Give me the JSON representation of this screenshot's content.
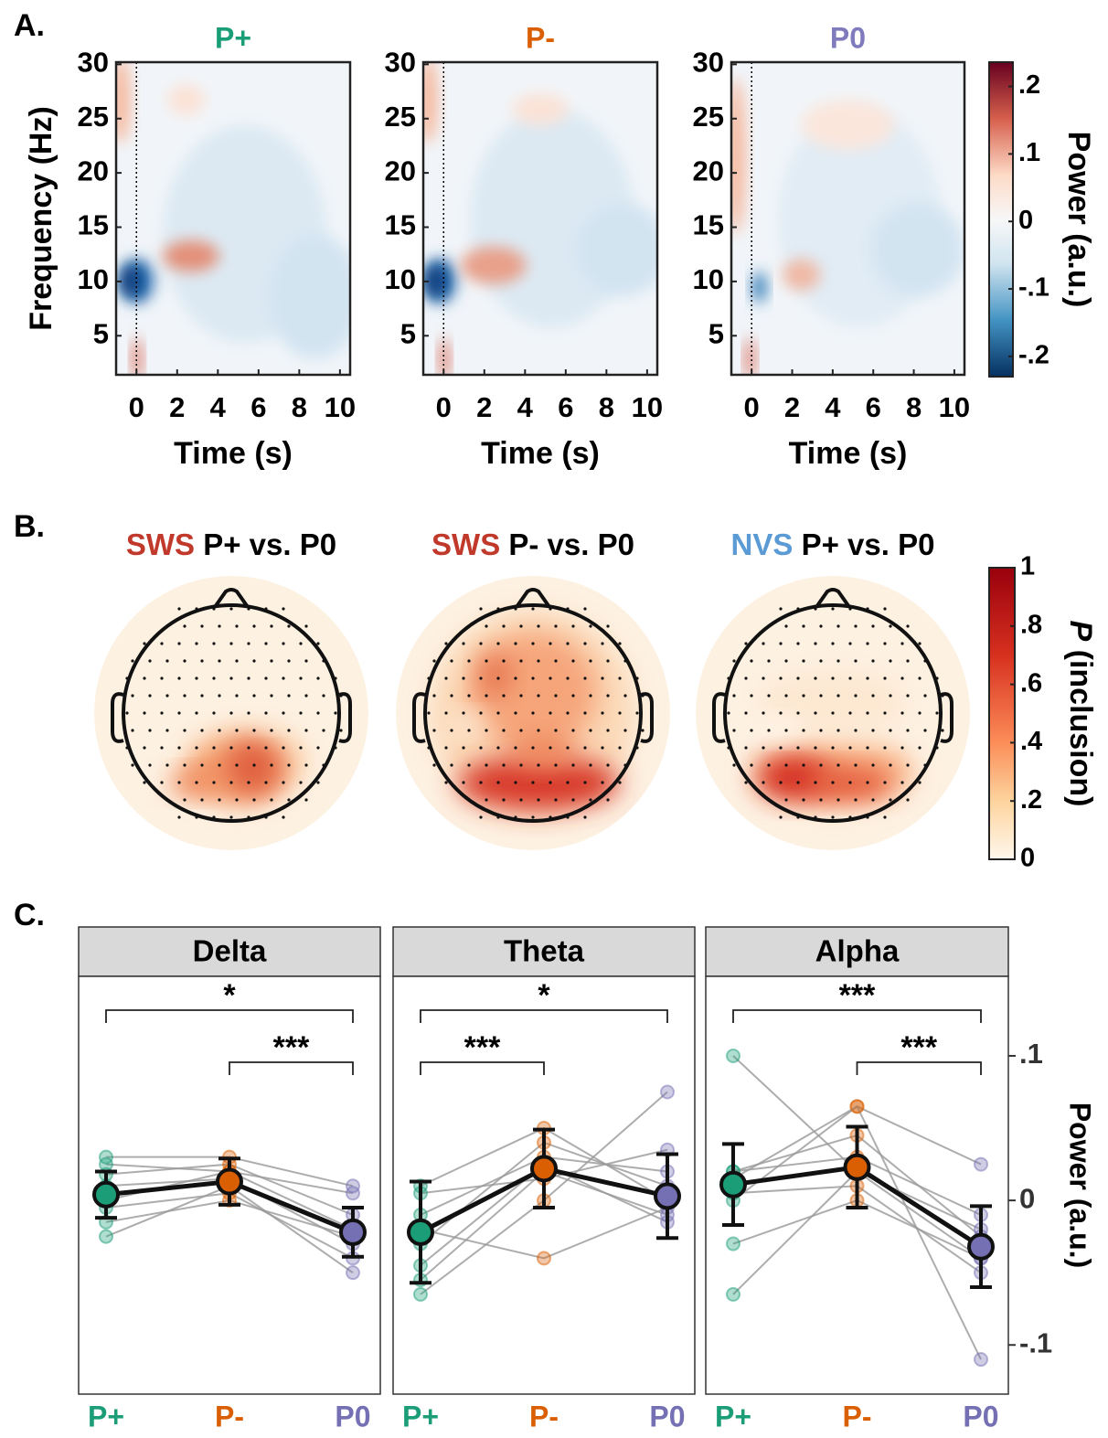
{
  "chart_data": [
    {
      "type": "heatmap",
      "panel": "A.",
      "title": "P+",
      "title_color": "#1a9e77",
      "xlabel": "Time (s)",
      "ylabel": "Frequency (Hz)",
      "xlim": [
        -1,
        10.5
      ],
      "xticks": [
        0,
        2,
        4,
        6,
        8,
        10
      ],
      "ylim": [
        1.4,
        30.2
      ],
      "yticks": [
        5,
        10,
        15,
        20,
        25,
        30
      ],
      "event_time": 0
    },
    {
      "type": "heatmap",
      "title": "P-",
      "title_color": "#d95f02",
      "xlabel": "Time (s)",
      "xlim": [
        -1,
        10.5
      ],
      "xticks": [
        0,
        2,
        4,
        6,
        8,
        10
      ],
      "ylim": [
        1.4,
        30.2
      ],
      "yticks": [
        5,
        10,
        15,
        20,
        25,
        30
      ],
      "event_time": 0
    },
    {
      "type": "heatmap",
      "title": "P0",
      "title_color": "#7f7bbd",
      "xlabel": "Time (s)",
      "xlim": [
        -1,
        10.5
      ],
      "xticks": [
        0,
        2,
        4,
        6,
        8,
        10
      ],
      "ylim": [
        1.4,
        30.2
      ],
      "yticks": [
        5,
        10,
        15,
        20,
        25,
        30
      ],
      "event_time": 0
    },
    {
      "type": "colorbar",
      "colormap": "diverging",
      "label": "Power (a.u.)",
      "ylim": [
        -0.23,
        0.236
      ],
      "yticks": [
        {
          "value": -0.2,
          "label": "-.2"
        },
        {
          "value": -0.1,
          "label": "-.1"
        },
        0,
        {
          "value": 0.1,
          "label": ".1"
        },
        {
          "value": 0.2,
          "label": ".2"
        }
      ]
    },
    {
      "type": "topoplot",
      "panel": "B.",
      "title_prefix": "SWS",
      "prefix_color": "#c0392b",
      "title": "P+ vs. P0"
    },
    {
      "type": "topoplot",
      "title_prefix": "SWS",
      "prefix_color": "#c0392b",
      "title": "P- vs. P0"
    },
    {
      "type": "topoplot",
      "title_prefix": "NVS",
      "prefix_color": "#5b9bd5",
      "title": "P+ vs. P0"
    },
    {
      "type": "colorbar",
      "colormap": "sequential",
      "label_italic": "P",
      "label": "(inclusion)",
      "ylim": [
        0,
        1
      ],
      "yticks": [
        0,
        {
          "value": 0.2,
          "label": ".2"
        },
        {
          "value": 0.4,
          "label": ".4"
        },
        {
          "value": 0.6,
          "label": ".6"
        },
        {
          "value": 0.8,
          "label": ".8"
        },
        1
      ]
    },
    {
      "type": "line",
      "panel": "C.",
      "title": "Delta",
      "categories": [
        "P+",
        "P-",
        "P0"
      ],
      "category_colors": [
        "#1b9e77",
        "#d95f02",
        "#7570b3"
      ],
      "ylim": [
        -0.134,
        0.155
      ],
      "mean": [
        0.004,
        0.013,
        -0.022
      ],
      "error": [
        0.016,
        0.016,
        0.017
      ],
      "subjects": [
        [
          0.025,
          0.02,
          0.005
        ],
        [
          0.018,
          0.025,
          -0.01
        ],
        [
          0.01,
          0.015,
          -0.03
        ],
        [
          -0.005,
          0.005,
          -0.04
        ],
        [
          -0.015,
          0.0,
          -0.025
        ],
        [
          -0.025,
          0.01,
          -0.05
        ],
        [
          0.03,
          0.03,
          0.01
        ],
        [
          0.0,
          0.02,
          -0.02
        ]
      ],
      "comparisons": [
        {
          "between": [
            "P+",
            "P0"
          ],
          "label": "*"
        },
        {
          "between": [
            "P-",
            "P0"
          ],
          "label": "***"
        }
      ]
    },
    {
      "type": "line",
      "title": "Theta",
      "categories": [
        "P+",
        "P-",
        "P0"
      ],
      "category_colors": [
        "#1b9e77",
        "#d95f02",
        "#7570b3"
      ],
      "ylim": [
        -0.134,
        0.155
      ],
      "mean": [
        -0.022,
        0.022,
        0.003
      ],
      "error": [
        0.035,
        0.027,
        0.029
      ],
      "subjects": [
        [
          0.01,
          0.05,
          0.0
        ],
        [
          -0.01,
          0.03,
          0.02
        ],
        [
          -0.03,
          0.04,
          0.01
        ],
        [
          -0.045,
          0.025,
          -0.015
        ],
        [
          -0.065,
          0.0,
          0.075
        ],
        [
          -0.02,
          -0.04,
          -0.005
        ],
        [
          0.005,
          0.015,
          0.035
        ],
        [
          -0.055,
          0.02,
          -0.01
        ]
      ],
      "comparisons": [
        {
          "between": [
            "P+",
            "P0"
          ],
          "label": "*"
        },
        {
          "between": [
            "P+",
            "P-"
          ],
          "label": "***"
        }
      ]
    },
    {
      "type": "line",
      "title": "Alpha",
      "categories": [
        "P+",
        "P-",
        "P0"
      ],
      "category_colors": [
        "#1b9e77",
        "#d95f02",
        "#7570b3"
      ],
      "ylim": [
        -0.134,
        0.155
      ],
      "mean": [
        0.011,
        0.023,
        -0.032
      ],
      "error": [
        0.028,
        0.028,
        0.028
      ],
      "subjects": [
        [
          0.1,
          0.02,
          -0.04
        ],
        [
          0.02,
          0.045,
          -0.025
        ],
        [
          0.0,
          0.065,
          0.025
        ],
        [
          -0.03,
          0.0,
          -0.04
        ],
        [
          -0.065,
          0.02,
          -0.02
        ],
        [
          0.015,
          0.065,
          -0.11
        ],
        [
          0.005,
          0.01,
          -0.05
        ],
        [
          0.02,
          0.03,
          -0.01
        ]
      ],
      "comparisons": [
        {
          "between": [
            "P+",
            "P0"
          ],
          "label": "***"
        },
        {
          "between": [
            "P-",
            "P0"
          ],
          "label": "***"
        }
      ],
      "yticks": [
        {
          "value": -0.1,
          "label": "-.1"
        },
        0,
        {
          "value": 0.1,
          "label": ".1"
        }
      ],
      "ylabel": "Power (a.u.)"
    }
  ]
}
